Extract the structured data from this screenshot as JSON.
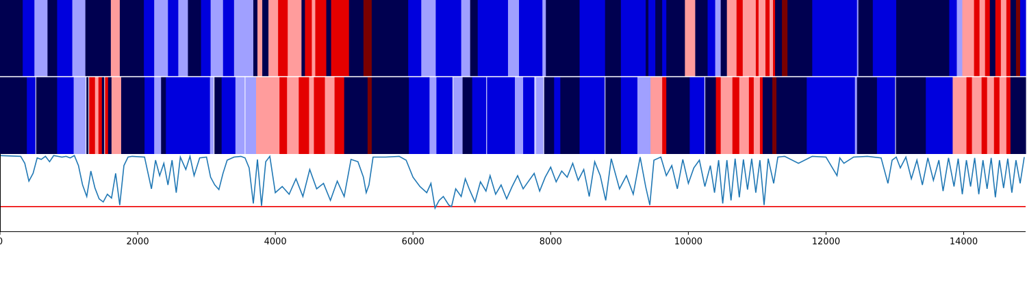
{
  "chart_data": {
    "type": "heatmap",
    "title": "",
    "xlabel": "",
    "ylabel": "",
    "xlim": [
      0,
      14900
    ],
    "x_ticks": [
      "0",
      "2000",
      "4000",
      "6000",
      "8000",
      "10000",
      "12000",
      "14000"
    ],
    "x_tick_values": [
      0,
      2000,
      4000,
      6000,
      8000,
      10000,
      12000,
      14000
    ],
    "grid": false,
    "palette": [
      "#000050",
      "#0000dd",
      "#a0a0ff",
      "#ff9c9c",
      "#e40000",
      "#7a0000"
    ],
    "tracks": [
      {
        "segments": [
          [
            0,
            330,
            0
          ],
          [
            330,
            500,
            1
          ],
          [
            500,
            690,
            2
          ],
          [
            690,
            830,
            0
          ],
          [
            830,
            1050,
            1
          ],
          [
            1050,
            1240,
            2
          ],
          [
            1240,
            1610,
            0
          ],
          [
            1610,
            1740,
            3
          ],
          [
            1740,
            2090,
            0
          ],
          [
            2090,
            2240,
            1
          ],
          [
            2240,
            2440,
            2
          ],
          [
            2440,
            2590,
            1
          ],
          [
            2590,
            2730,
            2
          ],
          [
            2730,
            2920,
            0
          ],
          [
            2920,
            3060,
            1
          ],
          [
            3060,
            3240,
            2
          ],
          [
            3240,
            3400,
            1
          ],
          [
            3400,
            3680,
            2
          ],
          [
            3680,
            3740,
            0
          ],
          [
            3740,
            3810,
            3
          ],
          [
            3810,
            3900,
            0
          ],
          [
            3900,
            4040,
            3
          ],
          [
            4040,
            4180,
            4
          ],
          [
            4180,
            4380,
            3
          ],
          [
            4380,
            4430,
            0
          ],
          [
            4430,
            4530,
            4
          ],
          [
            4530,
            4580,
            3
          ],
          [
            4580,
            4740,
            4
          ],
          [
            4740,
            4810,
            0
          ],
          [
            4810,
            4970,
            4
          ],
          [
            4970,
            5070,
            4
          ],
          [
            5070,
            5280,
            0
          ],
          [
            5280,
            5400,
            5
          ],
          [
            5400,
            5930,
            0
          ],
          [
            5930,
            6120,
            1
          ],
          [
            6120,
            6330,
            2
          ],
          [
            6330,
            6700,
            1
          ],
          [
            6700,
            6830,
            2
          ],
          [
            6830,
            6940,
            0
          ],
          [
            6940,
            7380,
            1
          ],
          [
            7380,
            7540,
            2
          ],
          [
            7540,
            7880,
            1
          ],
          [
            7880,
            7930,
            2
          ],
          [
            7930,
            8420,
            0
          ],
          [
            8420,
            8790,
            1
          ],
          [
            8790,
            9020,
            0
          ],
          [
            9020,
            9380,
            1
          ],
          [
            9380,
            9420,
            0
          ],
          [
            9420,
            9520,
            1
          ],
          [
            9520,
            9620,
            0
          ],
          [
            9620,
            9680,
            1
          ],
          [
            9680,
            9950,
            0
          ],
          [
            9950,
            10100,
            3
          ],
          [
            10100,
            10280,
            0
          ],
          [
            10280,
            10390,
            1
          ],
          [
            10390,
            10470,
            2
          ],
          [
            10470,
            10560,
            0
          ],
          [
            10560,
            10700,
            3
          ],
          [
            10700,
            10790,
            4
          ],
          [
            10790,
            10980,
            3
          ],
          [
            10980,
            11020,
            4
          ],
          [
            11020,
            11120,
            3
          ],
          [
            11120,
            11180,
            4
          ],
          [
            11180,
            11230,
            3
          ],
          [
            11230,
            11260,
            4
          ],
          [
            11260,
            11360,
            0
          ],
          [
            11360,
            11440,
            5
          ],
          [
            11440,
            11800,
            0
          ],
          [
            11800,
            12450,
            1
          ],
          [
            12450,
            12470,
            2
          ],
          [
            12470,
            12680,
            0
          ],
          [
            12680,
            13020,
            1
          ],
          [
            13020,
            13790,
            0
          ],
          [
            13790,
            13900,
            1
          ],
          [
            13900,
            13980,
            2
          ],
          [
            13980,
            14150,
            3
          ],
          [
            14150,
            14230,
            4
          ],
          [
            14230,
            14310,
            3
          ],
          [
            14310,
            14380,
            4
          ],
          [
            14380,
            14460,
            0
          ],
          [
            14460,
            14540,
            4
          ],
          [
            14540,
            14620,
            3
          ],
          [
            14620,
            14680,
            4
          ],
          [
            14680,
            14760,
            0
          ],
          [
            14760,
            14820,
            5
          ],
          [
            14820,
            14900,
            1
          ]
        ]
      },
      {
        "segments": [
          [
            0,
            390,
            0
          ],
          [
            390,
            520,
            1
          ],
          [
            520,
            830,
            0
          ],
          [
            830,
            1070,
            1
          ],
          [
            1070,
            1250,
            2
          ],
          [
            1250,
            1290,
            0
          ],
          [
            1290,
            1380,
            4
          ],
          [
            1380,
            1430,
            3
          ],
          [
            1430,
            1480,
            4
          ],
          [
            1480,
            1520,
            0
          ],
          [
            1520,
            1570,
            4
          ],
          [
            1570,
            1620,
            0
          ],
          [
            1620,
            1760,
            3
          ],
          [
            1760,
            2100,
            0
          ],
          [
            2100,
            2240,
            1
          ],
          [
            2240,
            2340,
            2
          ],
          [
            2340,
            2410,
            0
          ],
          [
            2410,
            2600,
            1
          ],
          [
            2600,
            2880,
            1
          ],
          [
            2880,
            3050,
            1
          ],
          [
            3050,
            3110,
            2
          ],
          [
            3110,
            3220,
            0
          ],
          [
            3220,
            3420,
            1
          ],
          [
            3420,
            3560,
            2
          ],
          [
            3560,
            3720,
            2
          ],
          [
            3720,
            3820,
            3
          ],
          [
            3820,
            4060,
            3
          ],
          [
            4060,
            4170,
            4
          ],
          [
            4170,
            4340,
            3
          ],
          [
            4340,
            4490,
            4
          ],
          [
            4490,
            4560,
            3
          ],
          [
            4560,
            4720,
            4
          ],
          [
            4720,
            4860,
            3
          ],
          [
            4860,
            5000,
            4
          ],
          [
            5000,
            5030,
            0
          ],
          [
            5030,
            5340,
            0
          ],
          [
            5340,
            5400,
            5
          ],
          [
            5400,
            5940,
            0
          ],
          [
            5940,
            6240,
            1
          ],
          [
            6240,
            6340,
            2
          ],
          [
            6340,
            6580,
            1
          ],
          [
            6580,
            6720,
            2
          ],
          [
            6720,
            6860,
            0
          ],
          [
            6860,
            7070,
            1
          ],
          [
            7070,
            7480,
            1
          ],
          [
            7480,
            7600,
            2
          ],
          [
            7600,
            7760,
            1
          ],
          [
            7760,
            7900,
            2
          ],
          [
            7900,
            8050,
            0
          ],
          [
            8050,
            8140,
            1
          ],
          [
            8140,
            8420,
            0
          ],
          [
            8420,
            8790,
            1
          ],
          [
            8790,
            9020,
            0
          ],
          [
            9020,
            9260,
            1
          ],
          [
            9260,
            9450,
            2
          ],
          [
            9450,
            9620,
            3
          ],
          [
            9620,
            9680,
            4
          ],
          [
            9680,
            10020,
            0
          ],
          [
            10020,
            10240,
            1
          ],
          [
            10240,
            10400,
            0
          ],
          [
            10400,
            10470,
            4
          ],
          [
            10470,
            10640,
            3
          ],
          [
            10640,
            10740,
            4
          ],
          [
            10740,
            10880,
            3
          ],
          [
            10880,
            10950,
            4
          ],
          [
            10950,
            11040,
            3
          ],
          [
            11040,
            11080,
            4
          ],
          [
            11080,
            11220,
            0
          ],
          [
            11220,
            11280,
            5
          ],
          [
            11280,
            11720,
            0
          ],
          [
            11720,
            12420,
            1
          ],
          [
            12420,
            12450,
            2
          ],
          [
            12450,
            12740,
            0
          ],
          [
            12740,
            13010,
            1
          ],
          [
            13010,
            13450,
            0
          ],
          [
            13450,
            13840,
            1
          ],
          [
            13840,
            14040,
            3
          ],
          [
            14040,
            14120,
            4
          ],
          [
            14120,
            14260,
            3
          ],
          [
            14260,
            14340,
            4
          ],
          [
            14340,
            14440,
            3
          ],
          [
            14440,
            14520,
            4
          ],
          [
            14520,
            14620,
            3
          ],
          [
            14620,
            14680,
            4
          ],
          [
            14680,
            14900,
            0
          ]
        ],
        "separators": [
          520,
          1250,
          1290,
          1520,
          3110,
          3560,
          6580,
          7070,
          7780,
          7900,
          8790,
          10240,
          13010
        ]
      }
    ],
    "line": {
      "ylim": [
        0,
        1
      ],
      "threshold": 0.32,
      "threshold_color": "#ee0000",
      "color": "#1f77b4",
      "x": [
        0,
        300,
        360,
        420,
        480,
        540,
        600,
        660,
        720,
        780,
        840,
        900,
        960,
        1020,
        1080,
        1140,
        1200,
        1260,
        1320,
        1380,
        1440,
        1500,
        1560,
        1620,
        1680,
        1740,
        1800,
        1860,
        1920,
        2100,
        2200,
        2260,
        2320,
        2380,
        2440,
        2500,
        2560,
        2620,
        2700,
        2760,
        2820,
        2900,
        3000,
        3060,
        3120,
        3180,
        3240,
        3300,
        3400,
        3500,
        3560,
        3620,
        3680,
        3740,
        3800,
        3860,
        3920,
        4000,
        4100,
        4200,
        4300,
        4400,
        4500,
        4600,
        4700,
        4800,
        4900,
        5000,
        5100,
        5200,
        5280,
        5320,
        5360,
        5420,
        5600,
        5800,
        5900,
        6000,
        6100,
        6200,
        6260,
        6320,
        6380,
        6440,
        6520,
        6560,
        6620,
        6700,
        6760,
        6820,
        6900,
        6980,
        7060,
        7120,
        7200,
        7280,
        7360,
        7440,
        7520,
        7600,
        7680,
        7760,
        7840,
        7920,
        8000,
        8080,
        8160,
        8240,
        8320,
        8400,
        8480,
        8560,
        8640,
        8720,
        8800,
        8880,
        9000,
        9100,
        9200,
        9300,
        9380,
        9440,
        9500,
        9600,
        9680,
        9760,
        9840,
        9920,
        10000,
        10080,
        10160,
        10240,
        10320,
        10380,
        10440,
        10500,
        10560,
        10620,
        10680,
        10740,
        10800,
        10860,
        10920,
        10980,
        11040,
        11100,
        11160,
        11240,
        11300,
        11400,
        11600,
        11800,
        12000,
        12160,
        12200,
        12260,
        12400,
        12600,
        12800,
        12900,
        12960,
        13020,
        13080,
        13160,
        13240,
        13320,
        13400,
        13480,
        13560,
        13640,
        13700,
        13780,
        13860,
        13920,
        13980,
        14040,
        14100,
        14160,
        14220,
        14280,
        14340,
        14400,
        14460,
        14520,
        14580,
        14640,
        14700,
        14760,
        14820,
        14880
      ],
      "y": [
        0.98,
        0.97,
        0.88,
        0.65,
        0.75,
        0.95,
        0.93,
        0.97,
        0.9,
        0.98,
        0.97,
        0.96,
        0.97,
        0.95,
        0.98,
        0.85,
        0.6,
        0.45,
        0.78,
        0.56,
        0.42,
        0.38,
        0.48,
        0.43,
        0.75,
        0.34,
        0.85,
        0.96,
        0.97,
        0.96,
        0.55,
        0.92,
        0.72,
        0.88,
        0.6,
        0.92,
        0.5,
        0.96,
        0.8,
        0.97,
        0.72,
        0.95,
        0.96,
        0.7,
        0.6,
        0.54,
        0.75,
        0.92,
        0.96,
        0.97,
        0.95,
        0.82,
        0.36,
        0.93,
        0.33,
        0.9,
        0.97,
        0.5,
        0.58,
        0.48,
        0.68,
        0.45,
        0.8,
        0.55,
        0.62,
        0.4,
        0.65,
        0.45,
        0.93,
        0.9,
        0.7,
        0.5,
        0.6,
        0.96,
        0.96,
        0.97,
        0.92,
        0.7,
        0.58,
        0.5,
        0.62,
        0.3,
        0.4,
        0.45,
        0.34,
        0.32,
        0.55,
        0.45,
        0.68,
        0.54,
        0.38,
        0.64,
        0.52,
        0.72,
        0.48,
        0.6,
        0.42,
        0.58,
        0.72,
        0.55,
        0.65,
        0.75,
        0.52,
        0.7,
        0.83,
        0.64,
        0.78,
        0.7,
        0.88,
        0.66,
        0.8,
        0.45,
        0.9,
        0.72,
        0.4,
        0.94,
        0.55,
        0.72,
        0.48,
        0.96,
        0.58,
        0.34,
        0.92,
        0.96,
        0.72,
        0.85,
        0.55,
        0.93,
        0.62,
        0.82,
        0.92,
        0.58,
        0.85,
        0.5,
        0.92,
        0.36,
        0.92,
        0.4,
        0.94,
        0.44,
        0.93,
        0.54,
        0.94,
        0.5,
        0.92,
        0.34,
        0.94,
        0.62,
        0.96,
        0.97,
        0.88,
        0.97,
        0.96,
        0.72,
        0.95,
        0.88,
        0.96,
        0.97,
        0.95,
        0.62,
        0.92,
        0.96,
        0.82,
        0.96,
        0.68,
        0.92,
        0.6,
        0.95,
        0.66,
        0.92,
        0.52,
        0.95,
        0.58,
        0.94,
        0.48,
        0.92,
        0.58,
        0.95,
        0.48,
        0.92,
        0.55,
        0.95,
        0.44,
        0.92,
        0.56,
        0.94,
        0.5,
        0.92,
        0.62,
        0.96
      ]
    }
  }
}
